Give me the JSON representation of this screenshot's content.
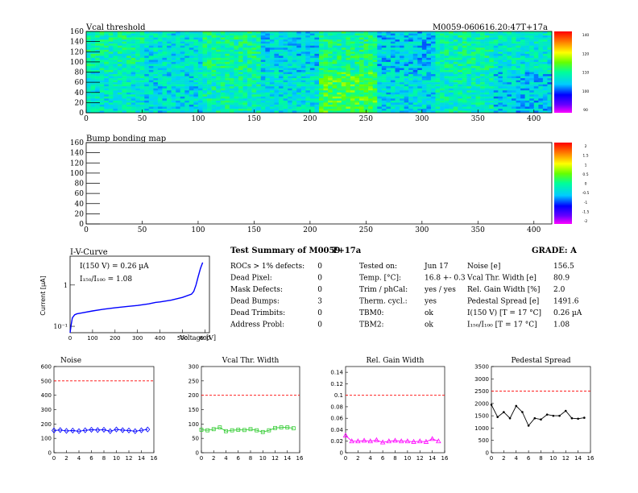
{
  "vcal_map": {
    "title": "Vcal threshold",
    "module_label": "M0059-060616.20:47T+17a",
    "x_ticks": [
      "0",
      "50",
      "100",
      "150",
      "200",
      "250",
      "300",
      "350",
      "400"
    ],
    "y_ticks": [
      "0",
      "20",
      "40",
      "60",
      "80",
      "100",
      "120",
      "140",
      "160"
    ],
    "palette_ticks": [
      "140",
      "120",
      "110",
      "100",
      "90"
    ]
  },
  "bump_map": {
    "title": "Bump bonding map",
    "x_ticks": [
      "0",
      "50",
      "100",
      "150",
      "200",
      "250",
      "300",
      "350",
      "400"
    ],
    "y_ticks": [
      "0",
      "20",
      "40",
      "60",
      "80",
      "100",
      "120",
      "140",
      "160"
    ],
    "palette_ticks": [
      "2",
      "1.5",
      "1",
      "0.5",
      "0",
      "-0.5",
      "-1",
      "-1.5",
      "-2"
    ]
  },
  "iv_curve": {
    "title": "I-V-Curve",
    "ylabel": "Current [µA]",
    "xlabel": "Voltage [V]",
    "x_ticks": [
      "0",
      "100",
      "200",
      "300",
      "400",
      "500",
      "600"
    ],
    "y_ticks": [
      "1",
      "10⁻¹"
    ],
    "annotation_1": "I(150 V) = 0.26 µA",
    "annotation_2": "I₁₅₀/I₁₀₀ = 1.08"
  },
  "summary": {
    "title": "Test Summary of M0059",
    "temperature_tag": "T+17a",
    "grade": "GRADE:  A",
    "left": [
      {
        "label": "ROCs > 1% defects:",
        "value": "0"
      },
      {
        "label": "Dead Pixel:",
        "value": "0"
      },
      {
        "label": "Mask Defects:",
        "value": "0"
      },
      {
        "label": "Dead Bumps:",
        "value": "3"
      },
      {
        "label": "Dead Trimbits:",
        "value": "0"
      },
      {
        "label": "Address Probl:",
        "value": "0"
      }
    ],
    "middle": [
      {
        "label": "Tested on:",
        "value": "Jun 17"
      },
      {
        "label": "Temp. [°C]:",
        "value": "16.8 +- 0.3"
      },
      {
        "label": "Trim / phCal:",
        "value": "yes / yes"
      },
      {
        "label": "Therm. cycl.:",
        "value": "yes"
      },
      {
        "label": "TBM0:",
        "value": "ok"
      },
      {
        "label": "TBM2:",
        "value": "ok"
      }
    ],
    "right": [
      {
        "label": "Noise [e]",
        "value": "156.5"
      },
      {
        "label": "Vcal Thr. Width [e]",
        "value": "80.9"
      },
      {
        "label": "Rel. Gain Width [%]",
        "value": "2.0"
      },
      {
        "label": "Pedestal Spread [e]",
        "value": "1491.6"
      },
      {
        "label": "I(150 V) [T = 17 °C]",
        "value": "0.26 µA"
      },
      {
        "label": "I₁₅₀/I₁₀₀   [T = 17 °C]",
        "value": "1.08"
      }
    ]
  },
  "chart_data": [
    {
      "type": "heatmap",
      "title": "Vcal threshold",
      "xlim": [
        0,
        416
      ],
      "ylim": [
        0,
        160
      ],
      "zlim": [
        80,
        150
      ],
      "roc_values_bottom": [
        110,
        108,
        112,
        109,
        120,
        108,
        111,
        106
      ],
      "roc_values_top": [
        113,
        109,
        114,
        107,
        115,
        106,
        113,
        110
      ]
    },
    {
      "type": "heatmap",
      "title": "Bump bonding map",
      "xlim": [
        0,
        416
      ],
      "ylim": [
        0,
        160
      ],
      "zlim": [
        -2,
        2
      ],
      "values": []
    },
    {
      "type": "line",
      "title": "I-V-Curve",
      "xlabel": "Voltage [V]",
      "ylabel": "Current [µA]",
      "xlim": [
        0,
        620
      ],
      "ylim": [
        0.07,
        5
      ],
      "log_y": true,
      "x": [
        0,
        5,
        10,
        20,
        30,
        50,
        100,
        150,
        200,
        250,
        300,
        350,
        380,
        400,
        450,
        500,
        540,
        550,
        560,
        570,
        580,
        590
      ],
      "y": [
        0.07,
        0.11,
        0.16,
        0.19,
        0.2,
        0.21,
        0.235,
        0.26,
        0.28,
        0.3,
        0.32,
        0.35,
        0.38,
        0.39,
        0.43,
        0.5,
        0.6,
        0.7,
        1.0,
        1.6,
        2.5,
        3.5
      ]
    },
    {
      "type": "line",
      "title": "Noise",
      "xlim": [
        0,
        16
      ],
      "ylim": [
        0,
        600
      ],
      "reference": 500,
      "x_ticks": [
        "0",
        "2",
        "4",
        "6",
        "8",
        "10",
        "12",
        "14",
        "16"
      ],
      "y_ticks": [
        "0",
        "100",
        "200",
        "300",
        "400",
        "500",
        "600"
      ],
      "x": [
        0,
        1,
        2,
        3,
        4,
        5,
        6,
        7,
        8,
        9,
        10,
        11,
        12,
        13,
        14,
        15
      ],
      "y": [
        155,
        158,
        152,
        154,
        150,
        156,
        160,
        158,
        160,
        150,
        162,
        157,
        155,
        150,
        156,
        162
      ]
    },
    {
      "type": "line",
      "title": "Vcal Thr. Width",
      "xlim": [
        0,
        16
      ],
      "ylim": [
        0,
        300
      ],
      "reference": 200,
      "x_ticks": [
        "0",
        "2",
        "4",
        "6",
        "8",
        "10",
        "12",
        "14",
        "16"
      ],
      "y_ticks": [
        "0",
        "50",
        "100",
        "150",
        "200",
        "250",
        "300"
      ],
      "x": [
        0,
        1,
        2,
        3,
        4,
        5,
        6,
        7,
        8,
        9,
        10,
        11,
        12,
        13,
        14,
        15
      ],
      "y": [
        80,
        78,
        82,
        88,
        75,
        78,
        80,
        79,
        82,
        78,
        72,
        78,
        86,
        88,
        88,
        85
      ]
    },
    {
      "type": "line",
      "title": "Rel. Gain Width",
      "xlim": [
        0,
        16
      ],
      "ylim": [
        0,
        0.15
      ],
      "reference": 0.1,
      "x_ticks": [
        "0",
        "2",
        "4",
        "6",
        "8",
        "10",
        "12",
        "14",
        "16"
      ],
      "y_ticks": [
        "0",
        "0.02",
        "0.04",
        "0.06",
        "0.08",
        "0.1",
        "0.12",
        "0.14"
      ],
      "x": [
        0,
        1,
        2,
        3,
        4,
        5,
        6,
        7,
        8,
        9,
        10,
        11,
        12,
        13,
        14,
        15
      ],
      "y": [
        0.03,
        0.02,
        0.02,
        0.021,
        0.02,
        0.022,
        0.018,
        0.02,
        0.021,
        0.02,
        0.02,
        0.019,
        0.02,
        0.019,
        0.024,
        0.02
      ]
    },
    {
      "type": "line",
      "title": "Pedestal Spread",
      "xlim": [
        0,
        16
      ],
      "ylim": [
        0,
        3500
      ],
      "reference": 2500,
      "x_ticks": [
        "0",
        "2",
        "4",
        "6",
        "8",
        "10",
        "12",
        "14",
        "16"
      ],
      "y_ticks": [
        "0",
        "500",
        "1000",
        "1500",
        "2000",
        "2500",
        "3000",
        "3500"
      ],
      "x": [
        0,
        1,
        2,
        3,
        4,
        5,
        6,
        7,
        8,
        9,
        10,
        11,
        12,
        13,
        14,
        15
      ],
      "y": [
        1950,
        1450,
        1650,
        1400,
        1900,
        1650,
        1100,
        1400,
        1350,
        1550,
        1500,
        1500,
        1700,
        1400,
        1380,
        1420
      ]
    }
  ]
}
